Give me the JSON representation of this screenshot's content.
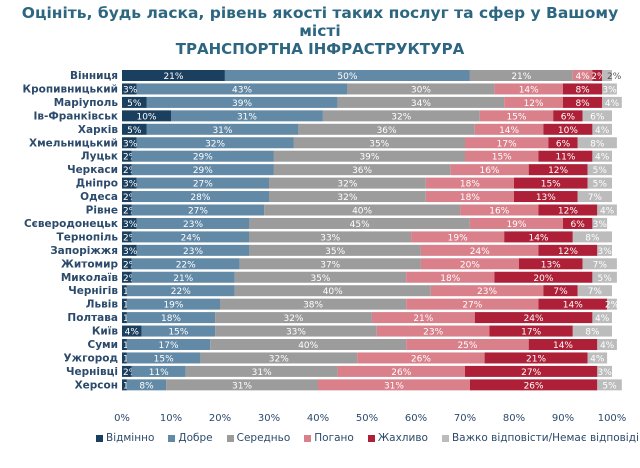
{
  "title": "Оцініть, будь ласка, рівень якості таких послуг та сфер у Вашому місті",
  "chart_data": {
    "type": "bar",
    "orientation": "horizontal",
    "stacked": true,
    "title": "ТРАНСПОРТНА ІНФРАСТРУКТУРА",
    "xlim": [
      0,
      100
    ],
    "x_ticks": [
      "0%",
      "10%",
      "20%",
      "30%",
      "40%",
      "50%",
      "60%",
      "70%",
      "80%",
      "90%",
      "100%"
    ],
    "legend_position": "bottom",
    "grid": false,
    "categories": [
      "Вінниця",
      "Кропивницький",
      "Маріуполь",
      "Ів-Франківськ",
      "Харків",
      "Хмельницький",
      "Луцьк",
      "Черкаси",
      "Дніпро",
      "Одеса",
      "Рівне",
      "Сєверодонецьк",
      "Тернопіль",
      "Запоріжжя",
      "Житомир",
      "Миколаїв",
      "Чернігів",
      "Львів",
      "Полтава",
      "Київ",
      "Суми",
      "Ужгород",
      "Чернівці",
      "Херсон"
    ],
    "series": [
      {
        "name": "Відмінно",
        "color": "#1b3f5e",
        "values": [
          21,
          3,
          5,
          10,
          5,
          3,
          2,
          2,
          3,
          2,
          2,
          3,
          2,
          3,
          2,
          2,
          1,
          1,
          1,
          4,
          1,
          1,
          2,
          1
        ]
      },
      {
        "name": "Добре",
        "color": "#6289a6",
        "values": [
          50,
          43,
          39,
          31,
          31,
          32,
          29,
          29,
          27,
          28,
          27,
          23,
          24,
          23,
          22,
          21,
          22,
          19,
          18,
          15,
          17,
          15,
          11,
          8
        ]
      },
      {
        "name": "Середньо",
        "color": "#9c9c9c",
        "values": [
          21,
          30,
          34,
          32,
          36,
          35,
          39,
          36,
          32,
          32,
          40,
          45,
          33,
          35,
          37,
          35,
          40,
          38,
          32,
          33,
          40,
          32,
          31,
          31
        ]
      },
      {
        "name": "Погано",
        "color": "#d9808b",
        "values": [
          4,
          14,
          12,
          15,
          14,
          17,
          15,
          16,
          18,
          18,
          16,
          19,
          19,
          24,
          20,
          18,
          23,
          27,
          21,
          23,
          25,
          26,
          26,
          31
        ]
      },
      {
        "name": "Жахливо",
        "color": "#ae2038",
        "values": [
          2,
          8,
          8,
          6,
          10,
          6,
          11,
          12,
          15,
          13,
          12,
          6,
          14,
          12,
          13,
          20,
          7,
          14,
          24,
          17,
          14,
          21,
          27,
          26
        ]
      },
      {
        "name": "Важко відповісти/Немає відповіді",
        "color": "#bcbcbc",
        "values": [
          2,
          3,
          4,
          6,
          4,
          8,
          4,
          5,
          5,
          7,
          4,
          3,
          8,
          3,
          7,
          5,
          7,
          2,
          4,
          8,
          4,
          4,
          3,
          5
        ]
      }
    ]
  }
}
